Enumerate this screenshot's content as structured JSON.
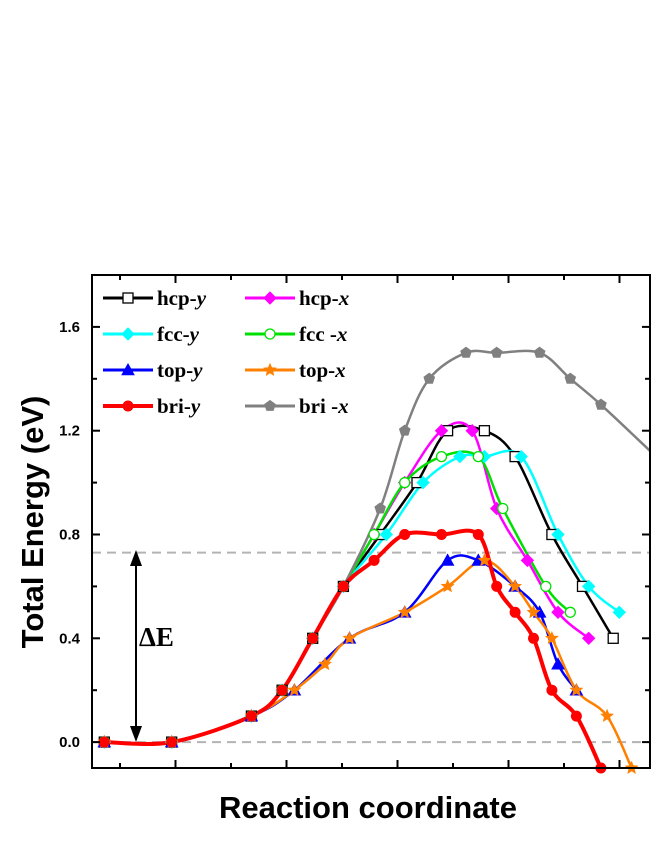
{
  "chart_data": {
    "type": "line",
    "title": "",
    "xlabel": "Reaction  coordinate",
    "ylabel": "Total  Energy  (eV)",
    "xlim": [
      -0.1,
      9.0
    ],
    "ylim": [
      -0.1,
      1.8
    ],
    "yticks": [
      "0.0",
      "0.4",
      "0.8",
      "1.2",
      "1.6"
    ],
    "yticks_values": [
      0.0,
      0.4,
      0.8,
      1.2,
      1.6
    ],
    "grid": false,
    "legend_position": "top-left",
    "reference_line_y": 0.73,
    "annotation": "ΔE",
    "series": [
      {
        "name": "hcp-",
        "name_italic": "y",
        "color": "#000000",
        "marker": "square-open",
        "x": [
          0.1,
          1.2,
          2.5,
          3.0,
          3.5,
          4.0,
          4.6,
          5.2,
          5.7,
          6.3,
          6.8,
          7.4,
          7.9,
          8.4
        ],
        "y": [
          0.0,
          0.0,
          0.1,
          0.2,
          0.4,
          0.6,
          0.8,
          1.0,
          1.2,
          1.2,
          1.1,
          0.8,
          0.6,
          0.4
        ]
      },
      {
        "name": "hcp-",
        "name_italic": "x",
        "color": "#FF00FF",
        "marker": "diamond-filled",
        "x": [
          0.1,
          1.2,
          2.5,
          3.0,
          3.5,
          4.0,
          4.5,
          5.0,
          5.6,
          6.1,
          6.5,
          7.0,
          7.5,
          8.0
        ],
        "y": [
          0.0,
          0.0,
          0.1,
          0.2,
          0.4,
          0.6,
          0.8,
          1.0,
          1.2,
          1.2,
          0.9,
          0.7,
          0.5,
          0.4
        ]
      },
      {
        "name": "fcc-",
        "name_italic": "y",
        "color": "#00FFFF",
        "marker": "diamond-filled",
        "x": [
          0.1,
          1.2,
          2.5,
          3.0,
          3.5,
          4.0,
          4.7,
          5.3,
          5.9,
          6.3,
          6.9,
          7.5,
          8.0,
          8.5
        ],
        "y": [
          0.0,
          0.0,
          0.1,
          0.2,
          0.4,
          0.6,
          0.8,
          1.0,
          1.1,
          1.1,
          1.1,
          0.8,
          0.6,
          0.5
        ]
      },
      {
        "name": "fcc -",
        "name_italic": "x",
        "color": "#00E000",
        "marker": "circle-open",
        "x": [
          0.1,
          1.2,
          2.5,
          3.0,
          3.5,
          4.0,
          4.5,
          5.0,
          5.6,
          6.2,
          6.6,
          7.3,
          7.7
        ],
        "y": [
          0.0,
          0.0,
          0.1,
          0.2,
          0.4,
          0.6,
          0.8,
          1.0,
          1.1,
          1.1,
          0.9,
          0.6,
          0.5
        ]
      },
      {
        "name": "top-",
        "name_italic": "y",
        "color": "#0000FF",
        "marker": "triangle-filled",
        "x": [
          0.1,
          1.2,
          2.5,
          3.2,
          4.1,
          5.0,
          5.7,
          6.2,
          6.8,
          7.2,
          7.5,
          7.8
        ],
        "y": [
          0.0,
          0.0,
          0.1,
          0.2,
          0.4,
          0.5,
          0.7,
          0.7,
          0.6,
          0.5,
          0.3,
          0.2
        ]
      },
      {
        "name": "top-",
        "name_italic": "x",
        "color": "#FF8000",
        "marker": "star-filled",
        "x": [
          0.1,
          1.2,
          2.5,
          3.2,
          3.7,
          4.1,
          5.0,
          5.7,
          6.3,
          6.8,
          7.1,
          7.4,
          7.8,
          8.3,
          8.7
        ],
        "y": [
          0.0,
          0.0,
          0.1,
          0.2,
          0.3,
          0.4,
          0.5,
          0.6,
          0.7,
          0.6,
          0.5,
          0.4,
          0.2,
          0.1,
          -0.1
        ]
      },
      {
        "name": "bri-",
        "name_italic": "y",
        "color": "#FF0000",
        "marker": "circle-filled",
        "x": [
          0.1,
          1.2,
          2.5,
          3.0,
          3.5,
          4.0,
          4.5,
          5.0,
          5.6,
          6.2,
          6.5,
          6.8,
          7.1,
          7.4,
          7.8,
          8.2
        ],
        "y": [
          0.0,
          0.0,
          0.1,
          0.2,
          0.4,
          0.6,
          0.7,
          0.8,
          0.8,
          0.8,
          0.6,
          0.5,
          0.4,
          0.2,
          0.1,
          -0.1
        ]
      },
      {
        "name": "bri -",
        "name_italic": "x",
        "color": "#808080",
        "marker": "pentagon-filled",
        "x": [
          0.1,
          1.2,
          2.5,
          3.0,
          3.5,
          4.0,
          4.6,
          5.0,
          5.4,
          6.0,
          6.5,
          7.2,
          7.7,
          8.2,
          9.1
        ],
        "y": [
          0.0,
          0.0,
          0.1,
          0.2,
          0.4,
          0.6,
          0.9,
          1.2,
          1.4,
          1.5,
          1.5,
          1.5,
          1.4,
          1.3,
          1.1
        ]
      }
    ]
  }
}
